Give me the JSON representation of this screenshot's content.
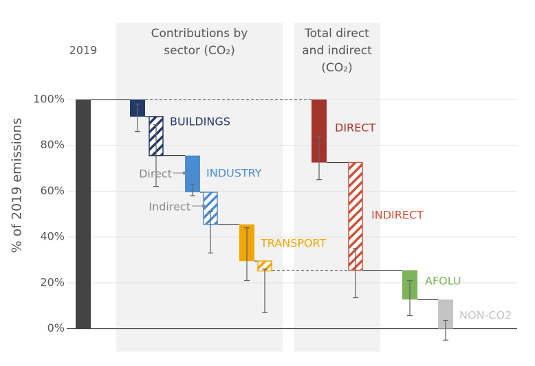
{
  "chart_data": {
    "type": "waterfall",
    "y_label": "% of 2019 emissions",
    "ylim": [
      -10,
      133.5
    ],
    "yticks": [
      {
        "value": 0,
        "label": "0%"
      },
      {
        "value": 20,
        "label": "20%"
      },
      {
        "value": 40,
        "label": "40%"
      },
      {
        "value": 60,
        "label": "60%"
      },
      {
        "value": 80,
        "label": "80%"
      },
      {
        "value": 100,
        "label": "100%"
      }
    ],
    "grid": true,
    "base": {
      "name": "2019",
      "value": 100,
      "color": "#444444"
    },
    "groups": [
      {
        "title": [
          "Contributions by",
          "sector (CO₂)"
        ],
        "steps": [
          {
            "name": "BUILDINGS",
            "color": "#243a66",
            "values": [
              -7.5,
              -17
            ],
            "errors": [
              [
                86,
                98
              ],
              [
                62,
                89
              ]
            ],
            "hatched": [
              false,
              true
            ]
          },
          {
            "name": "INDUSTRY",
            "color": "#4a8ccf",
            "values": [
              -16,
              -14
            ],
            "errors": [
              [
                58,
                63
              ],
              [
                33,
                51
              ]
            ],
            "hatched": [
              false,
              true
            ]
          },
          {
            "name": "TRANSPORT",
            "color": "#f0a500",
            "values": [
              -16,
              -4.3
            ],
            "errors": [
              [
                21,
                44
              ],
              [
                7,
                26
              ]
            ],
            "hatched": [
              false,
              true
            ]
          }
        ]
      },
      {
        "title": [
          "Total direct",
          "and indirect",
          "(CO₂)"
        ],
        "steps": [
          {
            "name": "DIRECT",
            "color": "#a3342a",
            "values": [
              -27.5
            ],
            "errors": [
              [
                65,
                84
              ]
            ],
            "hatched": [
              false
            ]
          },
          {
            "name": "INDIRECT",
            "color": "#cc5238",
            "values": [
              -47
            ],
            "errors": [
              [
                13.5,
                35
              ]
            ],
            "hatched": [
              true
            ]
          },
          {
            "name": "AFOLU",
            "color": "#7db35a",
            "values": [
              -12.8
            ],
            "errors": [
              [
                5.7,
                21
              ]
            ],
            "hatched": [
              false
            ]
          },
          {
            "name": "NON-CO2",
            "color": "#c4c4c4",
            "values": [
              -12.7
            ],
            "errors": [
              [
                -5,
                3.6
              ]
            ],
            "hatched": [
              false
            ]
          }
        ]
      }
    ],
    "annotations": [
      "Direct",
      "Indirect"
    ]
  }
}
